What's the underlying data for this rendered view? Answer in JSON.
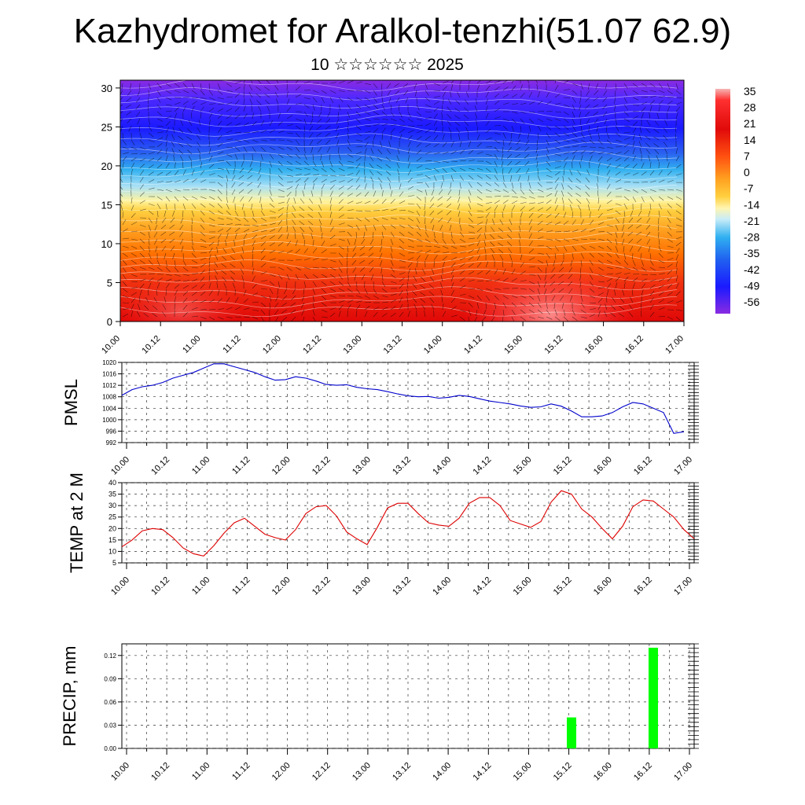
{
  "title": "Kazhydromet for Aralkol-tenzhi(51.07 62.9)",
  "subtitle": "10 ☆☆☆☆☆☆ 2025",
  "chart_data": [
    {
      "type": "heatmap",
      "y_range": [
        0,
        31
      ],
      "y_ticks": [
        "0",
        "5",
        "10",
        "15",
        "20",
        "25",
        "30"
      ],
      "x_ticks": [
        "10.00",
        "10.12",
        "11.00",
        "11.12",
        "12.00",
        "12.12",
        "13.00",
        "13.12",
        "14.00",
        "14.12",
        "15.00",
        "15.12",
        "16.00",
        "16.12",
        "17.00"
      ],
      "colorbar_labels": [
        "35",
        "28",
        "21",
        "14",
        "7",
        "0",
        "-7",
        "-14",
        "-21",
        "-28",
        "-35",
        "-42",
        "-49",
        "-56"
      ],
      "colors": {
        "hot": "#ff3333",
        "red": "#e01010",
        "orange": "#ff8c00",
        "yellow": "#ffee40",
        "cyan": "#30b0f0",
        "blue": "#1a1aff",
        "violet": "#8a2be2"
      }
    },
    {
      "type": "line",
      "ylabel": "PMSL",
      "ylim": [
        992,
        1020
      ],
      "y_ticks": [
        "992",
        "996",
        "1000",
        "1004",
        "1008",
        "1012",
        "1016",
        "1020"
      ],
      "x_ticks": [
        "10.00",
        "10.12",
        "11.00",
        "11.12",
        "12.00",
        "12.12",
        "13.00",
        "13.12",
        "14.00",
        "14.12",
        "15.00",
        "15.12",
        "16.00",
        "16.12",
        "17.00"
      ],
      "line_color": "#0000cc",
      "x": [
        0,
        3,
        6,
        9,
        12,
        15,
        18,
        21,
        24,
        27,
        30,
        33,
        36,
        39,
        42,
        45,
        48,
        51,
        54,
        57,
        60,
        63,
        66,
        69,
        72,
        75,
        78,
        81,
        84,
        87,
        90,
        93,
        96,
        99,
        102,
        105,
        108,
        111,
        114,
        117,
        120,
        123,
        126,
        129,
        132,
        135,
        138,
        141,
        144,
        147,
        150,
        153,
        156,
        159,
        162,
        165
      ],
      "values": [
        1008.5,
        1010.5,
        1011.5,
        1012,
        1013,
        1014.5,
        1015.5,
        1016.5,
        1018,
        1019.5,
        1019.5,
        1018.5,
        1017.5,
        1016.5,
        1015,
        1013.8,
        1014,
        1015,
        1014.5,
        1013.5,
        1012.3,
        1012,
        1012.2,
        1011.3,
        1010.8,
        1010.5,
        1009.8,
        1009,
        1008.3,
        1008,
        1008.1,
        1007.5,
        1007.8,
        1008.5,
        1008.1,
        1007.3,
        1006.5,
        1006,
        1005.5,
        1004.8,
        1004.3,
        1004.5,
        1005.5,
        1004.7,
        1003,
        1001,
        1001,
        1001.3,
        1002.5,
        1004.5,
        1006,
        1005.5,
        1004,
        1002.5,
        995.2,
        995.8
      ]
    },
    {
      "type": "line",
      "ylabel": "TEMP at 2 M",
      "ylim": [
        5,
        40
      ],
      "y_ticks": [
        "5",
        "10",
        "15",
        "20",
        "25",
        "30",
        "35",
        "40"
      ],
      "x_ticks": [
        "10.00",
        "10.12",
        "11.00",
        "11.12",
        "12.00",
        "12.12",
        "13.00",
        "13.12",
        "14.00",
        "14.12",
        "15.00",
        "15.12",
        "16.00",
        "16.12",
        "17.00"
      ],
      "line_color": "#dd0000",
      "x": [
        0,
        3,
        6,
        9,
        12,
        15,
        18,
        21,
        24,
        27,
        30,
        33,
        36,
        39,
        42,
        45,
        48,
        51,
        54,
        57,
        60,
        63,
        66,
        69,
        72,
        75,
        78,
        81,
        84,
        87,
        90,
        93,
        96,
        99,
        102,
        105,
        108,
        111,
        114,
        117,
        120,
        123,
        126,
        129,
        132,
        135,
        138,
        141,
        144,
        147,
        150,
        153,
        156,
        159,
        162,
        165,
        168
      ],
      "values": [
        12,
        15,
        19,
        20,
        19.5,
        16,
        11.5,
        9,
        8,
        12.5,
        18,
        22.5,
        24.5,
        21,
        17.5,
        16,
        15,
        19.5,
        26.5,
        29.5,
        30,
        25.5,
        18.5,
        15.5,
        13,
        20.5,
        29,
        31,
        31,
        26.5,
        22.5,
        21.5,
        21,
        24.5,
        31,
        33.5,
        33.5,
        30,
        23.5,
        22,
        20.5,
        23,
        31.5,
        36.5,
        35,
        28.5,
        25,
        20,
        15.5,
        21,
        29.5,
        32.5,
        32,
        28.5,
        25,
        19.5,
        15.5
      ]
    },
    {
      "type": "bar",
      "ylabel": "PRECIP, mm",
      "ylim": [
        0,
        0.135
      ],
      "y_ticks": [
        "0.00",
        "0.03",
        "0.06",
        "0.09",
        "0.12"
      ],
      "x_ticks": [
        "10.00",
        "10.12",
        "11.00",
        "11.12",
        "12.00",
        "12.12",
        "13.00",
        "13.12",
        "14.00",
        "14.12",
        "15.00",
        "15.12",
        "16.00",
        "16.12",
        "17.00"
      ],
      "bar_color": "#00ff00",
      "x": [
        132,
        156
      ],
      "values": [
        0.04,
        0.13
      ]
    }
  ]
}
